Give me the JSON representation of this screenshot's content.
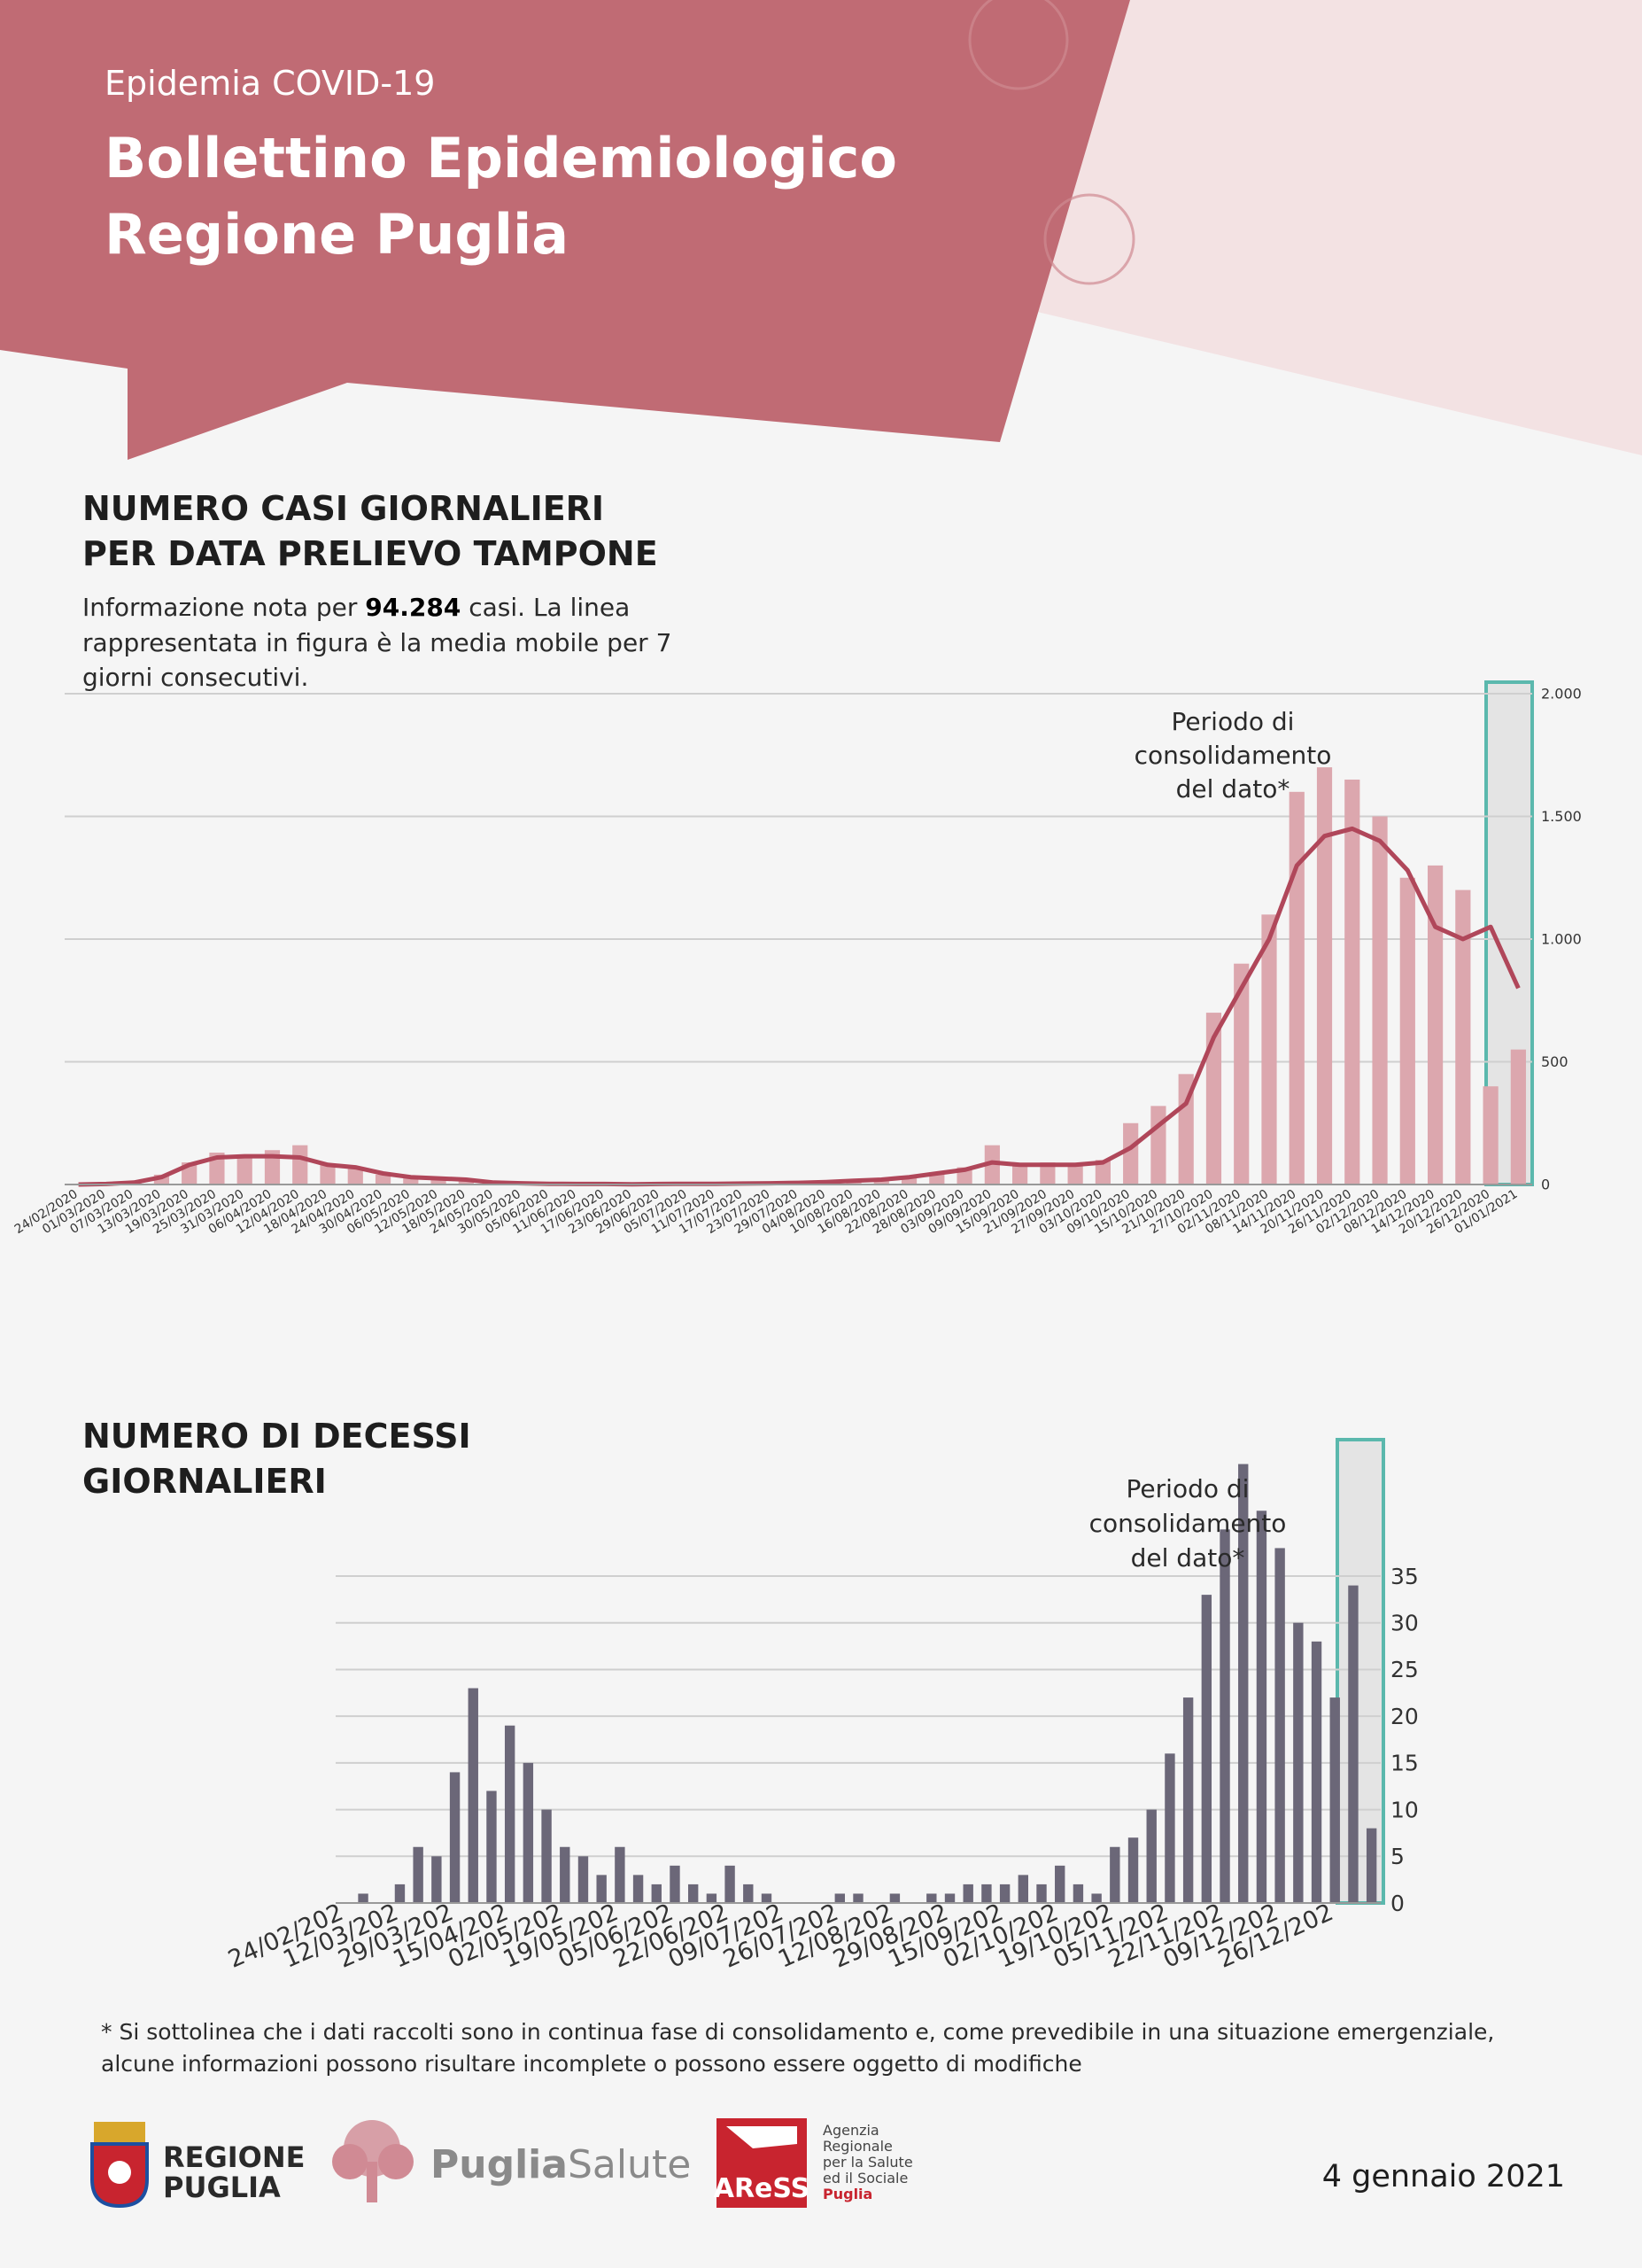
{
  "header": {
    "kicker": "Epidemia COVID-19",
    "title": [
      "Bollettino Epidemiologico",
      "Regione Puglia"
    ]
  },
  "chart_data": [
    {
      "type": "bar",
      "title": [
        "NUMERO CASI GIORNALIERI",
        "PER DATA PRELIEVO TAMPONE"
      ],
      "subtitle": {
        "lead": "Informazione nota per",
        "count": "94.284",
        "rest": "casi. La linea",
        "lines": [
          "rappresentata in figura è la media mobile per 7",
          "giorni consecutivi."
        ]
      },
      "annotation": [
        "Periodo di",
        "consolidamento",
        "del dato*"
      ],
      "categories": [
        "24/02/2020",
        "01/03/2020",
        "07/03/2020",
        "13/03/2020",
        "19/03/2020",
        "25/03/2020",
        "31/03/2020",
        "06/04/2020",
        "12/04/2020",
        "18/04/2020",
        "24/04/2020",
        "30/04/2020",
        "06/05/2020",
        "12/05/2020",
        "18/05/2020",
        "24/05/2020",
        "30/05/2020",
        "05/06/2020",
        "11/06/2020",
        "17/06/2020",
        "23/06/2020",
        "29/06/2020",
        "05/07/2020",
        "11/07/2020",
        "17/07/2020",
        "23/07/2020",
        "29/07/2020",
        "04/08/2020",
        "10/08/2020",
        "16/08/2020",
        "22/08/2020",
        "28/08/2020",
        "03/09/2020",
        "09/09/2020",
        "15/09/2020",
        "21/09/2020",
        "27/09/2020",
        "03/10/2020",
        "09/10/2020",
        "15/10/2020",
        "21/10/2020",
        "27/10/2020",
        "02/11/2020",
        "08/11/2020",
        "14/11/2020",
        "20/11/2020",
        "26/11/2020",
        "02/12/2020",
        "08/12/2020",
        "14/12/2020",
        "20/12/2020",
        "26/12/2020",
        "01/01/2021"
      ],
      "series": [
        {
          "type": "bar",
          "color": "#dca7ae",
          "values": [
            0,
            2,
            10,
            40,
            90,
            130,
            120,
            140,
            160,
            80,
            70,
            40,
            25,
            20,
            20,
            5,
            5,
            3,
            2,
            2,
            1,
            2,
            3,
            3,
            4,
            5,
            8,
            10,
            15,
            25,
            35,
            50,
            70,
            160,
            80,
            90,
            80,
            100,
            250,
            320,
            450,
            700,
            900,
            1100,
            1600,
            1700,
            1650,
            1500,
            1250,
            1300,
            1200,
            400,
            550
          ]
        },
        {
          "type": "line",
          "color": "#b0475a",
          "values": [
            0,
            2,
            8,
            30,
            80,
            110,
            115,
            115,
            110,
            80,
            70,
            45,
            30,
            25,
            20,
            8,
            5,
            3,
            2,
            2,
            1,
            2,
            3,
            3,
            4,
            5,
            7,
            10,
            15,
            20,
            30,
            45,
            60,
            90,
            80,
            80,
            80,
            90,
            150,
            240,
            330,
            600,
            800,
            1000,
            1300,
            1420,
            1450,
            1400,
            1280,
            1050,
            1000,
            1050,
            800
          ]
        }
      ],
      "ylim": [
        0,
        2000
      ],
      "yticks": [
        0,
        500,
        {
          "value": 1000,
          "label": "1.000"
        },
        {
          "value": 1500,
          "label": "1.500"
        },
        {
          "value": 2000,
          "label": "2.000"
        }
      ],
      "grid": true
    },
    {
      "type": "bar",
      "title": [
        "NUMERO DI DECESSI",
        "GIORNALIERI"
      ],
      "annotation": [
        "Periodo di",
        "consolidamento",
        "del dato*"
      ],
      "categories": [
        "24/02/202",
        null,
        null,
        "12/03/202",
        null,
        null,
        "29/03/202",
        null,
        null,
        "15/04/202",
        null,
        null,
        "02/05/202",
        null,
        null,
        "19/05/202",
        null,
        null,
        "05/06/202",
        null,
        null,
        "22/06/202",
        null,
        null,
        "09/07/202",
        null,
        null,
        "26/07/202",
        null,
        null,
        "12/08/202",
        null,
        null,
        "29/08/202",
        null,
        null,
        "15/09/202",
        null,
        null,
        "02/10/202",
        null,
        null,
        "19/10/202",
        null,
        null,
        "05/11/202",
        null,
        null,
        "22/11/202",
        null,
        null,
        "09/12/202",
        null,
        null,
        "26/12/202",
        null,
        null
      ],
      "series": [
        {
          "type": "bar",
          "color": "#6b6778",
          "values": [
            0,
            1,
            0,
            2,
            6,
            5,
            14,
            23,
            12,
            19,
            15,
            10,
            6,
            5,
            3,
            6,
            3,
            2,
            4,
            2,
            1,
            4,
            2,
            1,
            0,
            0,
            0,
            1,
            1,
            0,
            1,
            0,
            1,
            1,
            2,
            2,
            2,
            3,
            2,
            4,
            2,
            1,
            6,
            7,
            10,
            16,
            22,
            33,
            40,
            47,
            42,
            38,
            30,
            28,
            22,
            34,
            8
          ]
        }
      ],
      "ylim": [
        0,
        48
      ],
      "yticks": [
        0,
        5,
        10,
        15,
        20,
        25,
        30,
        35
      ],
      "grid": true
    }
  ],
  "footnote": [
    "* Si sottolinea che i dati raccolti sono in continua fase di consolidamento e, come prevedibile in una situazione emergenziale,",
    "alcune informazioni possono risultare incomplete o possono essere oggetto di modifiche"
  ],
  "logos": {
    "regione": [
      "REGIONE",
      "PUGLIA"
    ],
    "puglia_salute": [
      "Puglia",
      "Salute"
    ],
    "aress": "AReSS",
    "aress_name": [
      "Agenzia",
      "Regionale",
      "per la Salute",
      "ed il Sociale",
      "Puglia"
    ]
  },
  "date": "4 gennaio 2021"
}
